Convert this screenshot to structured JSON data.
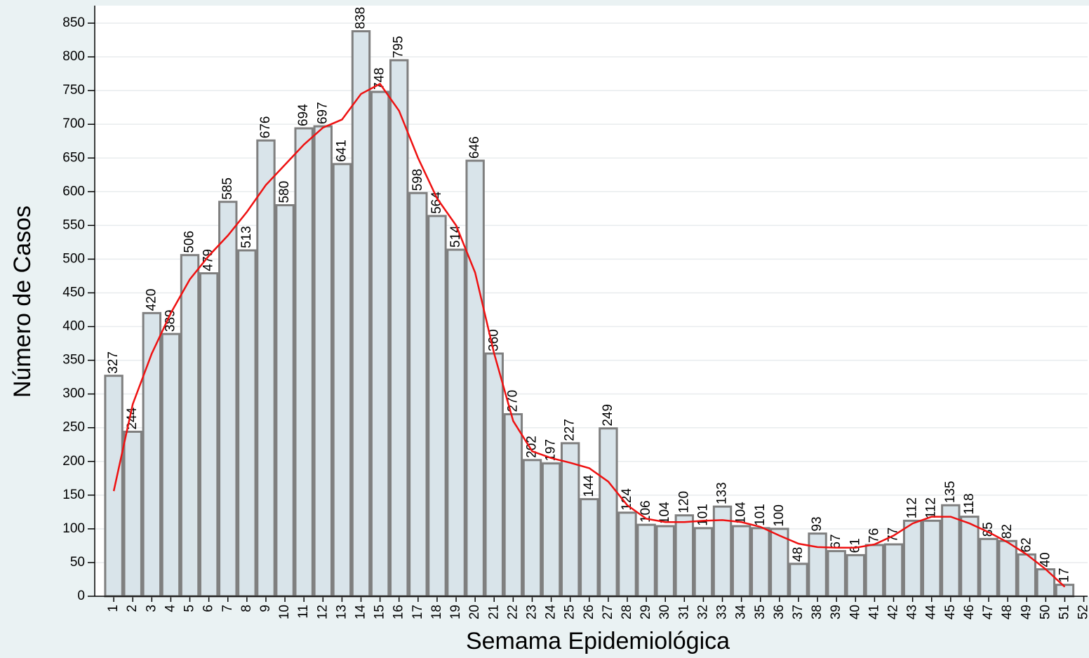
{
  "chart_data": {
    "type": "bar",
    "x_label": "Semama Epidemiológica",
    "y_label": "Número de Casos",
    "x": [
      1,
      2,
      3,
      4,
      5,
      6,
      7,
      8,
      9,
      10,
      11,
      12,
      13,
      14,
      15,
      16,
      17,
      18,
      19,
      20,
      21,
      22,
      23,
      24,
      25,
      26,
      27,
      28,
      29,
      30,
      31,
      32,
      33,
      34,
      35,
      36,
      37,
      38,
      39,
      40,
      41,
      42,
      43,
      44,
      45,
      46,
      47,
      48,
      49,
      50,
      51
    ],
    "values": [
      327,
      244,
      420,
      389,
      506,
      479,
      585,
      513,
      676,
      580,
      694,
      697,
      641,
      838,
      748,
      795,
      598,
      564,
      514,
      646,
      360,
      270,
      202,
      197,
      227,
      144,
      249,
      124,
      106,
      104,
      120,
      101,
      133,
      104,
      101,
      100,
      48,
      93,
      67,
      61,
      76,
      77,
      112,
      112,
      135,
      118,
      85,
      82,
      62,
      40,
      17
    ],
    "color": "#d9e4ea",
    "edge_color": "#7f7f7f",
    "line": {
      "color": "#ee1111",
      "values": [
        156,
        285,
        360,
        420,
        470,
        505,
        535,
        570,
        610,
        640,
        670,
        695,
        707,
        745,
        760,
        720,
        650,
        590,
        550,
        480,
        360,
        260,
        215,
        205,
        198,
        190,
        170,
        135,
        115,
        110,
        110,
        112,
        113,
        110,
        103,
        90,
        78,
        73,
        72,
        72,
        77,
        90,
        108,
        118,
        118,
        108,
        95,
        80,
        62,
        40,
        14
      ]
    },
    "xlim": [
      0,
      52.2
    ],
    "xticks": [
      1,
      2,
      3,
      4,
      5,
      6,
      7,
      8,
      9,
      10,
      11,
      12,
      13,
      14,
      15,
      16,
      17,
      18,
      19,
      20,
      21,
      22,
      23,
      24,
      25,
      26,
      27,
      28,
      29,
      30,
      31,
      32,
      33,
      34,
      35,
      36,
      37,
      38,
      39,
      40,
      41,
      42,
      43,
      44,
      45,
      46,
      47,
      48,
      49,
      50,
      51,
      52
    ],
    "ylim": [
      0,
      850
    ],
    "yticks": [
      0,
      50,
      100,
      150,
      200,
      250,
      300,
      350,
      400,
      450,
      500,
      550,
      600,
      650,
      700,
      750,
      800,
      850
    ],
    "grid": true
  }
}
